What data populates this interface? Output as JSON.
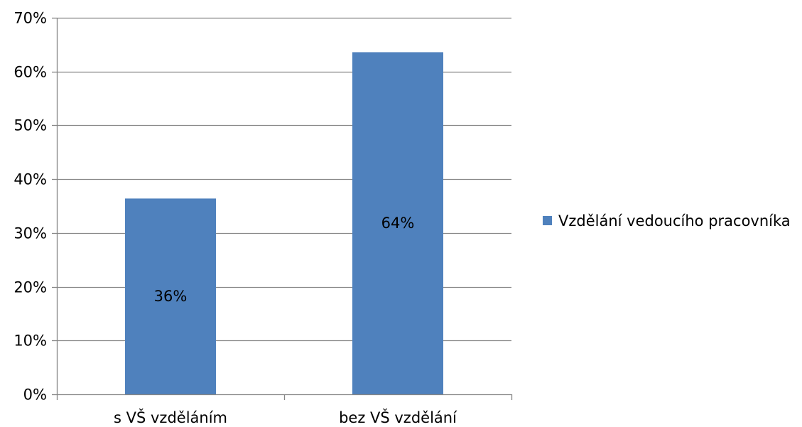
{
  "chart_data": {
    "type": "bar",
    "categories": [
      "s VŠ vzděláním",
      "bez VŠ vzdělání"
    ],
    "series": [
      {
        "name": "Vzdělání  vedoucího pracovníka",
        "values": [
          36.4,
          63.6
        ],
        "data_labels": [
          "36%",
          "64%"
        ]
      }
    ],
    "y_ticks": [
      0,
      10,
      20,
      30,
      40,
      50,
      60,
      70
    ],
    "y_tick_labels": [
      "0%",
      "10%",
      "20%",
      "30%",
      "40%",
      "50%",
      "60%",
      "70%"
    ],
    "ylim": [
      0,
      70
    ],
    "grid": true,
    "legend": "right",
    "colors": {
      "bar": "#4F81BD",
      "grid": "#868686",
      "axis": "#868686"
    }
  }
}
